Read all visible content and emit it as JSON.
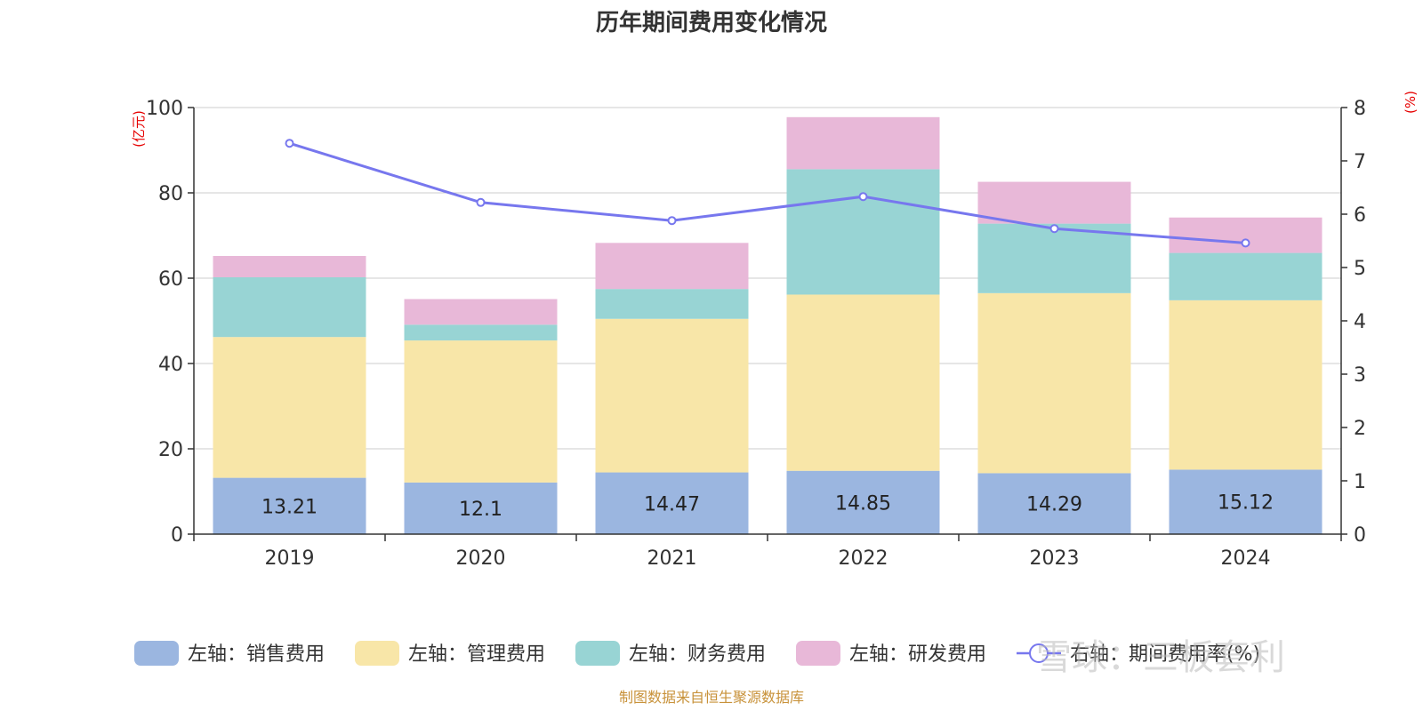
{
  "chart_data": {
    "type": "bar",
    "title": "历年期间费用变化情况",
    "categories": [
      "2019",
      "2020",
      "2021",
      "2022",
      "2023",
      "2024"
    ],
    "stacked": true,
    "left_axis": {
      "unit": "(亿元)",
      "ylim": [
        0,
        100
      ],
      "ticks": [
        0,
        20,
        40,
        60,
        80,
        100
      ]
    },
    "right_axis": {
      "unit": "(%)",
      "ylim": [
        0,
        8
      ],
      "ticks": [
        0,
        1,
        2,
        3,
        4,
        5,
        6,
        7,
        8
      ]
    },
    "series": [
      {
        "name": "左轴：销售费用",
        "color": "#9bb6e0",
        "values": [
          13.21,
          12.1,
          14.47,
          14.85,
          14.29,
          15.12
        ],
        "show_labels": true
      },
      {
        "name": "左轴：管理费用",
        "color": "#f8e6a8",
        "values": [
          33.0,
          33.3,
          36.0,
          41.3,
          42.2,
          39.7
        ]
      },
      {
        "name": "左轴：财务费用",
        "color": "#98d4d4",
        "values": [
          14.0,
          3.7,
          7.0,
          29.4,
          16.3,
          11.1
        ]
      },
      {
        "name": "左轴：研发费用",
        "color": "#e8b8d8",
        "values": [
          5.0,
          6.0,
          10.8,
          12.2,
          9.8,
          8.3
        ]
      },
      {
        "name": "右轴：期间费用率(%)",
        "color": "#7777ee",
        "type": "line",
        "axis": "right",
        "values": [
          7.33,
          6.22,
          5.88,
          6.33,
          5.73,
          5.46
        ]
      }
    ],
    "grid": true,
    "legend_position": "bottom"
  },
  "source_note": "制图数据来自恒生聚源数据库",
  "watermark": "雪球：三板套利"
}
